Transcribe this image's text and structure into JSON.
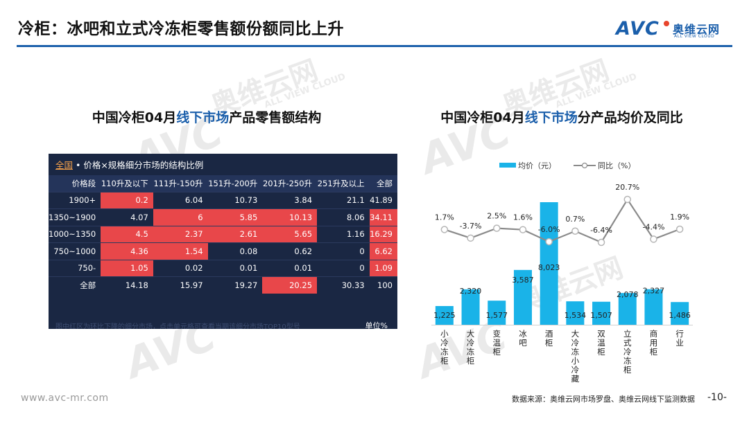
{
  "title": "冷柜：冰吧和立式冷冻柜零售额份额同比上升",
  "logo": {
    "main": "AVC",
    "cn": "奥维云网",
    "en": "ALL VIEW CLOUD"
  },
  "watermark": {
    "cn": "奥维云网",
    "en": "ALL VIEW CLOUD"
  },
  "left_subtitle": {
    "prefix": "中国冷柜04月",
    "highlight": "线下市场",
    "suffix": "产品零售额结构"
  },
  "right_subtitle": {
    "prefix": "中国冷柜04月",
    "highlight": "线下市场",
    "suffix": "分产品均价及同比"
  },
  "table_panel": {
    "header_link": "全国",
    "header_text": " • 价格×规格细分市场的结构比例",
    "unit": "单位%",
    "footnote": "图中红区为环比下降的细分市场，点击单元格可查看当期该细分市场TOP10型号",
    "columns": [
      "价格段",
      "110升及以下",
      "111升-150升",
      "151升-200升",
      "201升-250升",
      "251升及以上",
      "全部"
    ],
    "rows": [
      [
        "1900+",
        "0.2",
        "6.04",
        "10.73",
        "3.84",
        "21.1",
        "41.89"
      ],
      [
        "1350~1900",
        "4.07",
        "6",
        "5.85",
        "10.13",
        "8.06",
        "34.11"
      ],
      [
        "1000~1350",
        "4.5",
        "2.37",
        "2.61",
        "5.65",
        "1.16",
        "16.29"
      ],
      [
        "750~1000",
        "4.36",
        "1.54",
        "0.08",
        "0.62",
        "0",
        "6.62"
      ],
      [
        "750-",
        "1.05",
        "0.02",
        "0.01",
        "0.01",
        "0",
        "1.09"
      ],
      [
        "全部",
        "14.18",
        "15.97",
        "19.27",
        "20.25",
        "30.33",
        "100"
      ]
    ],
    "highlight_color": "#e8474a"
  },
  "chart_data": {
    "type": "bar",
    "categories": [
      "小冷冻柜",
      "大冷冻柜",
      "变温柜",
      "冰吧",
      "酒柜",
      "大冷冻小冷藏",
      "双温柜",
      "立式冷冻柜",
      "商用柜",
      "行业"
    ],
    "series": [
      {
        "name": "均价（元）",
        "type": "bar",
        "values": [
          1225,
          2320,
          1577,
          3587,
          8023,
          1534,
          1507,
          2078,
          2327,
          1486
        ],
        "labels": [
          "1,225",
          "2,320",
          "1,577",
          "3,587",
          "8,023",
          "1,534",
          "1,507",
          "2,078",
          "2,327",
          "1,486"
        ],
        "color": "#1ab3e8"
      },
      {
        "name": "同比（%）",
        "type": "line",
        "values": [
          1.7,
          -3.7,
          2.5,
          1.6,
          -6.0,
          0.7,
          -6.4,
          20.7,
          -4.4,
          1.9
        ],
        "labels": [
          "1.7%",
          "-3.7%",
          "2.5%",
          "1.6%",
          "-6.0%",
          "0.7%",
          "-6.4%",
          "20.7%",
          "-4.4%",
          "1.9%"
        ],
        "color": "#8a8a8a"
      }
    ],
    "legend_position": "top"
  },
  "footer": {
    "url": "www.avc-mr.com",
    "source": "数据来源：奥维云网市场罗盘、奥维云网线下监测数据",
    "page": "-10-"
  }
}
